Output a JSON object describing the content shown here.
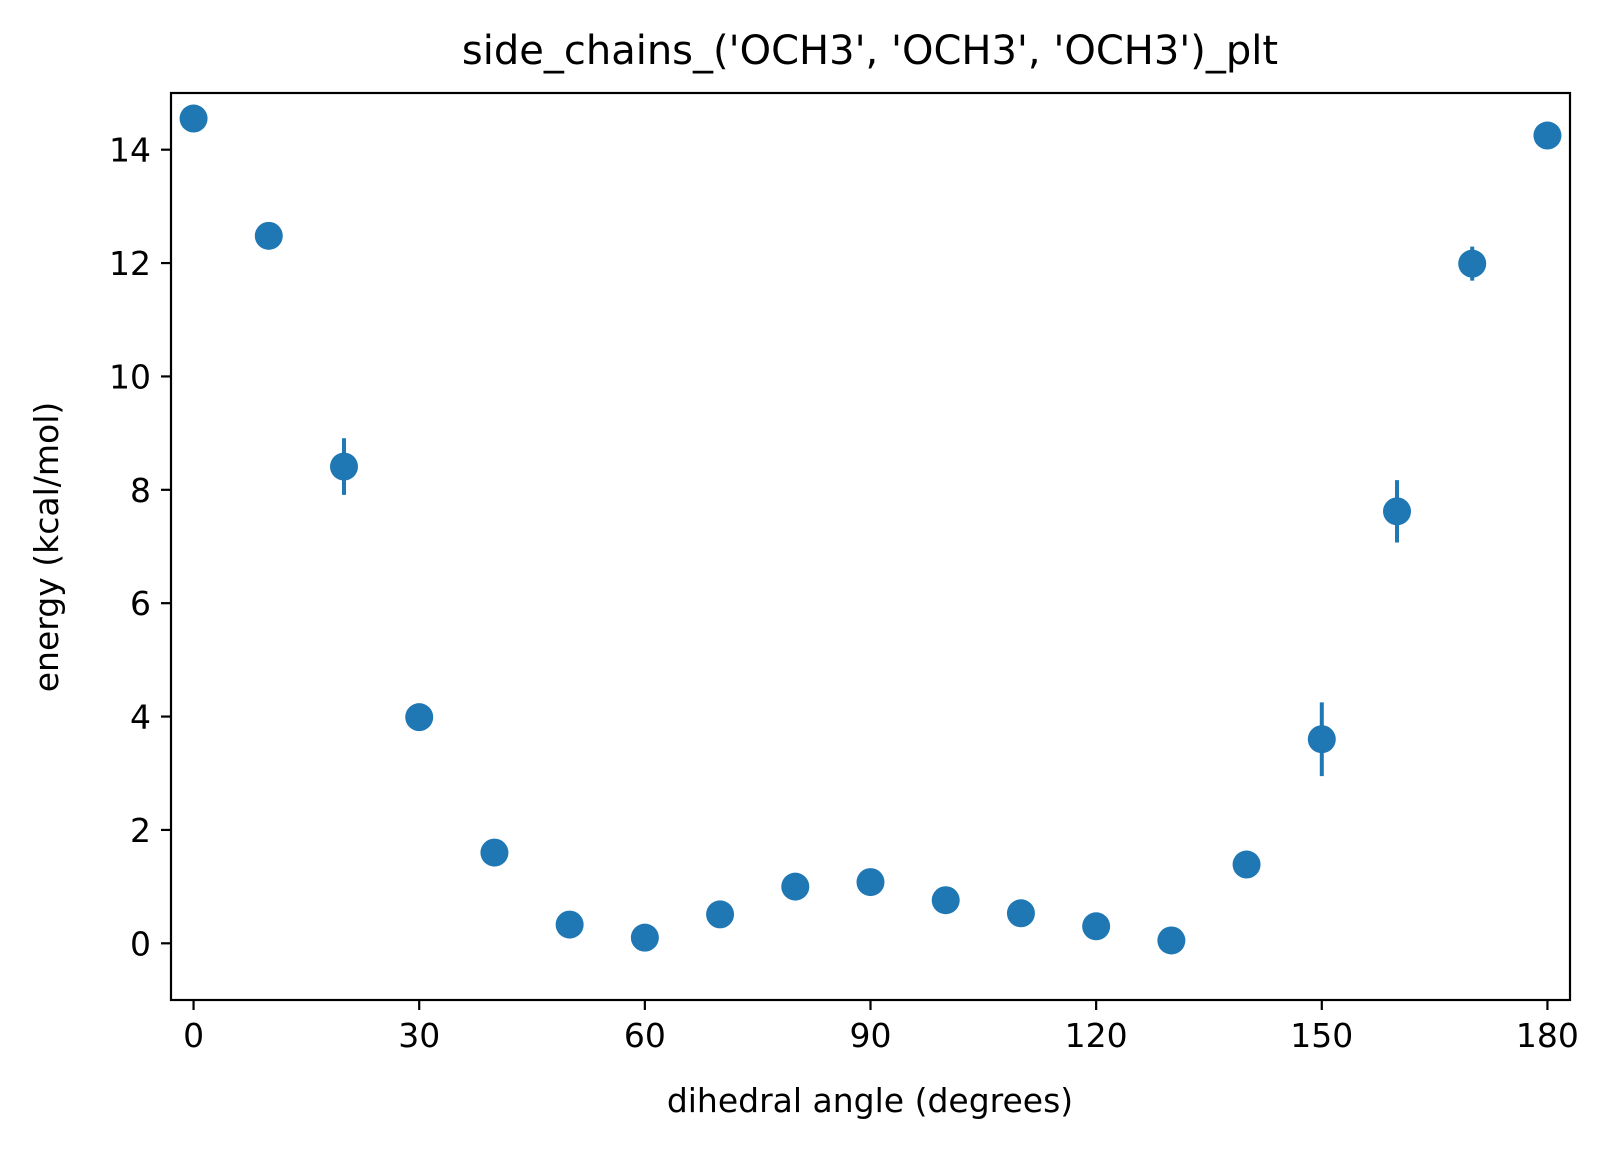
{
  "chart_data": {
    "type": "scatter",
    "title": "side_chains_('OCH3', 'OCH3', 'OCH3')_plt",
    "xlabel": "dihedral angle (degrees)",
    "ylabel": "energy (kcal/mol)",
    "xlim": [
      -3,
      183
    ],
    "ylim": [
      -1,
      15
    ],
    "xticks": [
      0,
      30,
      60,
      90,
      120,
      150,
      180
    ],
    "yticks": [
      0,
      2,
      4,
      6,
      8,
      10,
      12,
      14
    ],
    "grid": false,
    "legend": false,
    "color": "#1f77b4",
    "x": [
      0,
      10,
      20,
      30,
      40,
      50,
      60,
      70,
      80,
      90,
      100,
      110,
      120,
      130,
      140,
      150,
      160,
      170,
      180
    ],
    "y": [
      14.55,
      12.48,
      8.41,
      3.99,
      1.6,
      0.33,
      0.1,
      0.51,
      1.0,
      1.08,
      0.76,
      0.53,
      0.3,
      0.05,
      1.39,
      3.6,
      7.62,
      11.99,
      14.25
    ],
    "yerr": [
      0,
      0,
      0.5,
      0,
      0,
      0,
      0,
      0,
      0.12,
      0.12,
      0,
      0,
      0,
      0,
      0,
      0.65,
      0.55,
      0.3,
      0
    ]
  }
}
